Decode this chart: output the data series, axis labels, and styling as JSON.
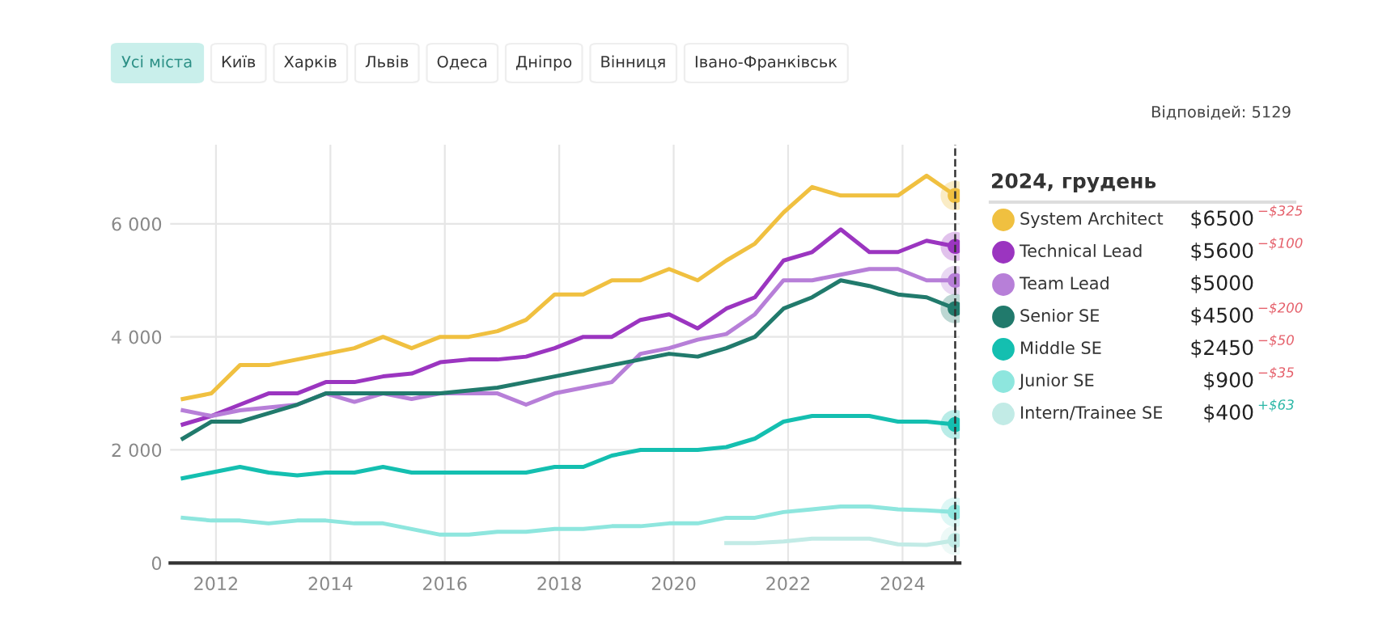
{
  "chart_data": {
    "type": "line",
    "legend_title": "2024, грудень",
    "legend": "right",
    "grid": true,
    "marker": "none",
    "line_style": "solid",
    "x": [
      2011.42,
      2011.92,
      2012.42,
      2012.92,
      2013.42,
      2013.92,
      2014.42,
      2014.92,
      2015.42,
      2015.92,
      2016.42,
      2016.92,
      2017.42,
      2017.92,
      2018.42,
      2018.92,
      2019.42,
      2019.92,
      2020.42,
      2020.92,
      2021.42,
      2021.92,
      2022.42,
      2022.92,
      2023.42,
      2023.92,
      2024.42,
      2024.92
    ],
    "xlim": [
      2011.2,
      2025.0
    ],
    "xticks": [
      2012,
      2014,
      2016,
      2018,
      2020,
      2022,
      2024
    ],
    "ylim": [
      0,
      7400
    ],
    "yticks": [
      0,
      {
        "value": 2000,
        "label": "2 000"
      },
      {
        "value": 4000,
        "label": "4 000"
      },
      {
        "value": 6000,
        "label": "6 000"
      }
    ],
    "ref_lines": [
      {
        "axis": "x",
        "value": 2024.92,
        "label": null,
        "color": "#333333",
        "line_style": "dashed"
      }
    ],
    "series": [
      {
        "name": "System Architect",
        "color": "#f0c040",
        "values": [
          2900,
          3000,
          3500,
          3500,
          3600,
          3700,
          3800,
          4000,
          3800,
          4000,
          4000,
          4100,
          4300,
          4750,
          4750,
          5000,
          5000,
          5200,
          5000,
          5350,
          5650,
          6200,
          6650,
          6500,
          6500,
          6500,
          6850,
          6500
        ]
      },
      {
        "name": "Technical Lead",
        "color": "#9b35c0",
        "values": [
          2450,
          2600,
          2800,
          3000,
          3000,
          3200,
          3200,
          3300,
          3350,
          3550,
          3600,
          3600,
          3650,
          3800,
          4000,
          4000,
          4300,
          4400,
          4150,
          4500,
          4700,
          5350,
          5500,
          5900,
          5500,
          5500,
          5700,
          5600
        ]
      },
      {
        "name": "Team Lead",
        "color": "#b77fd8",
        "values": [
          2700,
          2600,
          2700,
          2750,
          2800,
          3000,
          2850,
          3000,
          2900,
          3000,
          3000,
          3000,
          2800,
          3000,
          3100,
          3200,
          3700,
          3800,
          3950,
          4050,
          4400,
          5000,
          5000,
          5100,
          5200,
          5200,
          5000,
          5000
        ]
      },
      {
        "name": "Senior SE",
        "color": "#217a6c",
        "values": [
          2200,
          2500,
          2500,
          2650,
          2800,
          3000,
          3000,
          3000,
          3000,
          3000,
          3050,
          3100,
          3200,
          3300,
          3400,
          3500,
          3600,
          3700,
          3650,
          3800,
          4000,
          4500,
          4700,
          5000,
          4900,
          4750,
          4700,
          4500
        ]
      },
      {
        "name": "Middle SE",
        "color": "#14bfb0",
        "values": [
          1500,
          1600,
          1700,
          1600,
          1550,
          1600,
          1600,
          1700,
          1600,
          1600,
          1600,
          1600,
          1600,
          1700,
          1700,
          1900,
          2000,
          2000,
          2000,
          2050,
          2200,
          2500,
          2600,
          2600,
          2600,
          2500,
          2500,
          2450
        ]
      },
      {
        "name": "Junior SE",
        "color": "#8ee6de",
        "values": [
          800,
          750,
          750,
          700,
          750,
          750,
          700,
          700,
          600,
          500,
          500,
          550,
          550,
          600,
          600,
          650,
          650,
          700,
          700,
          800,
          800,
          900,
          950,
          1000,
          1000,
          950,
          930,
          900
        ]
      },
      {
        "name": "Intern/Trainee SE",
        "color": "#c2ebe6",
        "values": [
          null,
          null,
          null,
          null,
          null,
          null,
          null,
          null,
          null,
          null,
          null,
          null,
          null,
          null,
          null,
          null,
          null,
          null,
          null,
          350,
          350,
          380,
          430,
          430,
          430,
          330,
          320,
          400
        ]
      }
    ],
    "annotations": [
      "Усі міста",
      "Київ",
      "Харків",
      "Львів",
      "Одеса",
      "Дніпро",
      "Вінниця",
      "Івано-Франківськ",
      "Відповідей: 5129",
      "$6500",
      "$5600",
      "$5000",
      "$4500",
      "$2450",
      "$900",
      "$400",
      "−$325",
      "−$100",
      null,
      "−$200",
      "−$50",
      "−$35",
      "+$63"
    ]
  }
}
